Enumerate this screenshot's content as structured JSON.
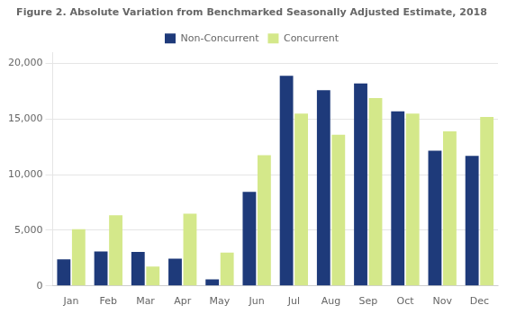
{
  "chart_data": {
    "type": "bar",
    "title": "Figure 2. Absolute Variation from Benchmarked Seasonally Adjusted Estimate, 2018",
    "categories": [
      "Jan",
      "Feb",
      "Mar",
      "Apr",
      "May",
      "Jun",
      "Jul",
      "Aug",
      "Sep",
      "Oct",
      "Nov",
      "Dec"
    ],
    "series": [
      {
        "name": "Non-Concurrent",
        "color": "#1e3a7a",
        "values": [
          2400,
          3100,
          3050,
          2450,
          600,
          8450,
          18900,
          17600,
          18200,
          15700,
          12150,
          11700
        ]
      },
      {
        "name": "Concurrent",
        "color": "#d4e88a",
        "values": [
          5100,
          6350,
          1750,
          6500,
          3000,
          11750,
          15500,
          13600,
          16900,
          15500,
          13900,
          15200
        ]
      }
    ],
    "ylim": [
      0,
      21000
    ],
    "yticks": [
      0,
      {
        "value": 5000,
        "label": "5,000"
      },
      {
        "value": 10000,
        "label": "10,000"
      },
      {
        "value": 15000,
        "label": "15,000"
      },
      {
        "value": 20000,
        "label": "20,000"
      }
    ],
    "grid": true,
    "legend": "top"
  }
}
